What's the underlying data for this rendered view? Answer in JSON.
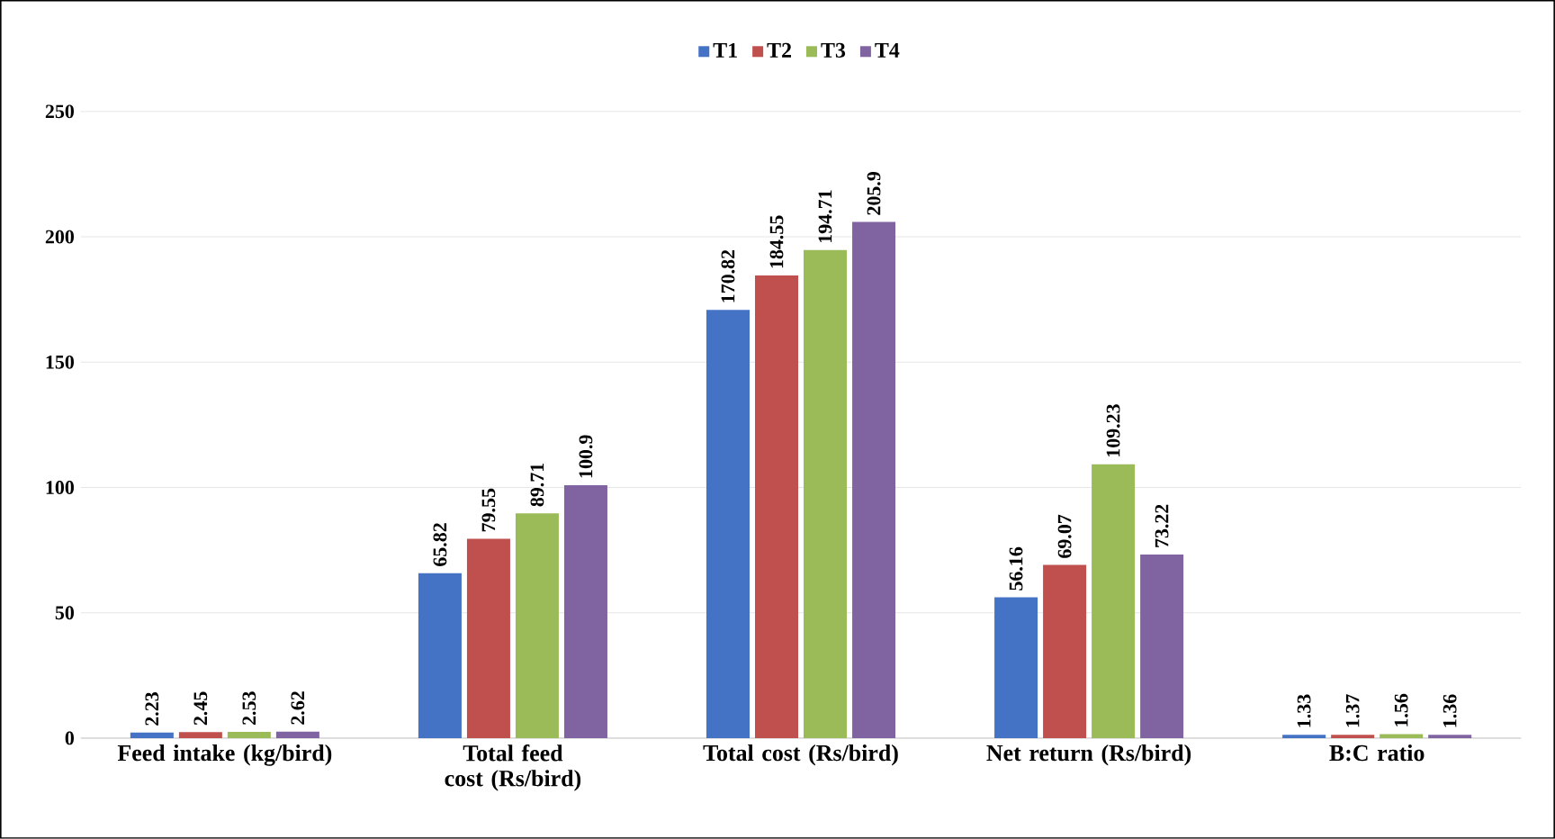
{
  "chart_data": {
    "type": "bar",
    "categories": [
      "Feed intake (kg/bird)",
      "Total feed cost (Rs/bird)",
      "Total cost (Rs/bird)",
      "Net return (Rs/bird)",
      "B:C ratio"
    ],
    "series": [
      {
        "name": "T1",
        "color": "#4472c4",
        "values": [
          2.23,
          65.82,
          170.82,
          56.16,
          1.33
        ]
      },
      {
        "name": "T2",
        "color": "#c0504d",
        "values": [
          2.45,
          79.55,
          184.55,
          69.07,
          1.37
        ]
      },
      {
        "name": "T3",
        "color": "#9bbb59",
        "values": [
          2.53,
          89.71,
          194.71,
          109.23,
          1.56
        ]
      },
      {
        "name": "T4",
        "color": "#8064a2",
        "values": [
          2.62,
          100.9,
          205.9,
          73.22,
          1.36
        ]
      }
    ],
    "ylim": [
      0,
      250
    ],
    "yticks": [
      0,
      50,
      100,
      150,
      200,
      250
    ],
    "grid": "y",
    "legend": "top",
    "data_labels": true
  }
}
